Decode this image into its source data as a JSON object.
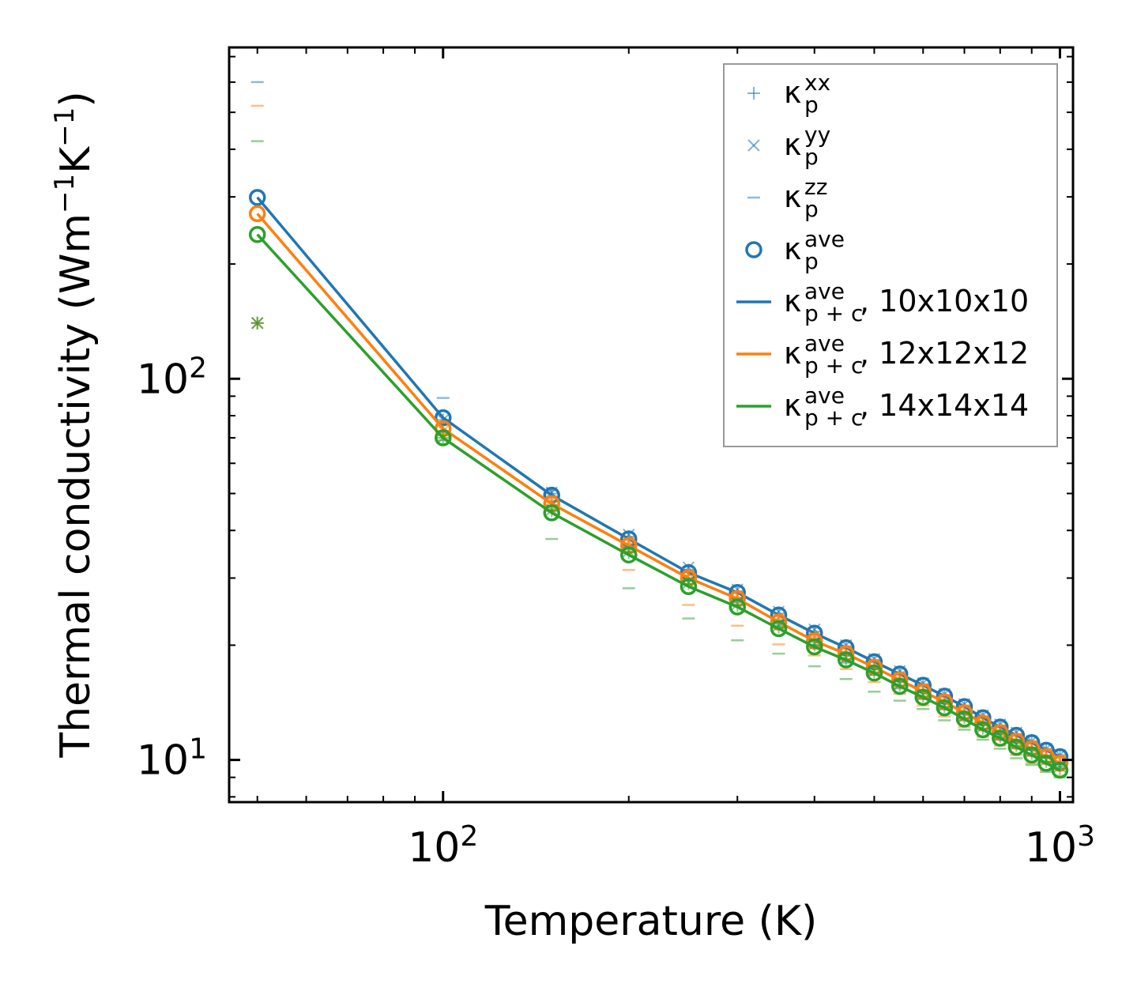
{
  "chart_data": {
    "type": "line",
    "xscale": "log",
    "yscale": "log",
    "xlim": [
      45,
      1050
    ],
    "ylim": [
      7.75,
      740
    ],
    "xlabel": "Temperature (K)",
    "ylabel": {
      "main": "Thermal conductivity (Wm",
      "sup1": "−1",
      "mid": "K",
      "sup2": "−1",
      "end": ")"
    },
    "x_ticks": [
      {
        "base": "10",
        "exp": "2",
        "value": 100
      },
      {
        "base": "10",
        "exp": "3",
        "value": 1000
      }
    ],
    "y_ticks": [
      {
        "base": "10",
        "exp": "1",
        "value": 10
      },
      {
        "base": "10",
        "exp": "2",
        "value": 100
      }
    ],
    "colors": {
      "blue": "#1f77b4",
      "orange": "#ff7f0e",
      "green": "#2ca02c"
    },
    "legend": [
      {
        "kind": "plus",
        "sym": "κ",
        "sub": "p",
        "sup": "xx",
        "suffix": ""
      },
      {
        "kind": "cross",
        "sym": "κ",
        "sub": "p",
        "sup": "yy",
        "suffix": ""
      },
      {
        "kind": "dash",
        "sym": "κ",
        "sub": "p",
        "sup": "zz",
        "suffix": ""
      },
      {
        "kind": "circle",
        "sym": "κ",
        "sub": "p",
        "sup": "ave",
        "suffix": ""
      },
      {
        "kind": "line-blue",
        "sym": "κ",
        "sub": "p + c",
        "sup": "ave",
        "suffix": ", 10x10x10"
      },
      {
        "kind": "line-orange",
        "sym": "κ",
        "sub": "p + c",
        "sup": "ave",
        "suffix": ", 12x12x12"
      },
      {
        "kind": "line-green",
        "sym": "κ",
        "sub": "p + c",
        "sup": "ave",
        "suffix": ", 14x14x14"
      }
    ],
    "x": [
      50,
      100,
      150,
      200,
      250,
      300,
      350,
      400,
      450,
      500,
      550,
      600,
      650,
      700,
      750,
      800,
      850,
      900,
      950,
      1000
    ],
    "series": [
      {
        "name": "10x10x10",
        "color": "#1f77b4",
        "ave": [
          299,
          79,
          49.5,
          38,
          31,
          27.5,
          24,
          21.5,
          19.7,
          18.1,
          16.8,
          15.7,
          14.7,
          13.8,
          12.9,
          12.2,
          11.6,
          11.1,
          10.6,
          10.2
        ],
        "xx": [
          140,
          78,
          50,
          38.5,
          31.5,
          27.7,
          24.2,
          21.7,
          19.9,
          18.3,
          17.0,
          15.8,
          14.8,
          13.9,
          13.0,
          12.3,
          11.7,
          11.2,
          10.7,
          10.3
        ],
        "yy": [
          140,
          78,
          50.3,
          39,
          32,
          28,
          24.5,
          22,
          20,
          18.4,
          17.1,
          15.9,
          14.9,
          14.0,
          13.1,
          12.4,
          11.8,
          11.2,
          10.7,
          10.3
        ],
        "zz": [
          600,
          89,
          51,
          36,
          29.5,
          26,
          22.5,
          20,
          18,
          16.7,
          15.4,
          14.5,
          13.6,
          12.7,
          12.0,
          11.3,
          10.8,
          10.3,
          9.9,
          9.6
        ]
      },
      {
        "name": "12x12x12",
        "color": "#ff7f0e",
        "ave": [
          271,
          74,
          47,
          36.5,
          30,
          26.5,
          23,
          20.5,
          19,
          17.5,
          16.2,
          15.1,
          14.2,
          13.3,
          12.5,
          11.8,
          11.2,
          10.7,
          10.2,
          9.8
        ],
        "xx": [
          140,
          73,
          47.5,
          37,
          30.5,
          26.7,
          23.4,
          21,
          19.2,
          17.7,
          16.4,
          15.3,
          14.3,
          13.4,
          12.6,
          11.9,
          11.3,
          10.8,
          10.3,
          9.9
        ],
        "yy": [
          140,
          73,
          47.8,
          37.3,
          30.8,
          27,
          23.6,
          21.1,
          19.3,
          17.8,
          16.5,
          15.4,
          14.4,
          13.5,
          12.7,
          12.0,
          11.4,
          10.9,
          10.4,
          10.0
        ],
        "zz": [
          520,
          72,
          45,
          31.5,
          25.5,
          22.5,
          20.1,
          18.8,
          17.3,
          16.0,
          14.9,
          13.9,
          13.0,
          12.2,
          11.5,
          10.9,
          10.3,
          9.8,
          9.4,
          9.1
        ]
      },
      {
        "name": "14x14x14",
        "color": "#2ca02c",
        "ave": [
          239,
          70,
          44.5,
          34.5,
          28.5,
          25.2,
          22.1,
          19.8,
          18.3,
          16.9,
          15.6,
          14.6,
          13.7,
          12.8,
          12.0,
          11.4,
          10.8,
          10.3,
          9.8,
          9.4
        ],
        "xx": [
          140,
          70,
          45,
          35,
          29,
          25.4,
          22.3,
          20,
          18.4,
          17.0,
          15.7,
          14.7,
          13.8,
          12.9,
          12.1,
          11.5,
          10.9,
          10.4,
          9.9,
          9.5
        ],
        "yy": [
          140,
          70,
          45.3,
          35.3,
          29.2,
          25.6,
          22.5,
          20.1,
          18.5,
          17.1,
          15.8,
          14.8,
          13.9,
          13.0,
          12.2,
          11.6,
          11.0,
          10.5,
          10.0,
          9.6
        ],
        "zz": [
          420,
          69,
          38,
          28.2,
          23.5,
          20.6,
          19,
          17.6,
          16.3,
          15.1,
          14.3,
          13.6,
          12.7,
          12.0,
          11.3,
          10.7,
          10.1,
          9.7,
          9.3,
          9.0
        ]
      }
    ]
  }
}
